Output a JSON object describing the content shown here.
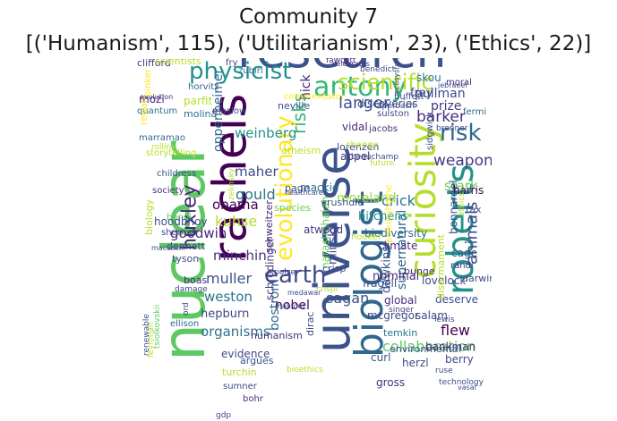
{
  "figure": {
    "title_line_1": "Community 7",
    "title_line_2": "[('Humanism', 115), ('Utilitarianism', 23), ('Ethics', 22)]"
  },
  "wordcloud": {
    "colormap": "viridis",
    "words": [
      {
        "text": "nuclear",
        "color": "#5ec962"
      },
      {
        "text": "research",
        "color": "#3b528b"
      },
      {
        "text": "universe",
        "color": "#3b528b"
      },
      {
        "text": "rachels",
        "color": "#440154"
      },
      {
        "text": "biologist",
        "color": "#31688e"
      },
      {
        "text": "curiosity",
        "color": "#b5de2b"
      },
      {
        "text": "roberts",
        "color": "#21918c"
      },
      {
        "text": "physicist",
        "color": "#21918c"
      },
      {
        "text": "antony",
        "color": "#35b779"
      },
      {
        "text": "scientific",
        "color": "#b5de2b"
      },
      {
        "text": "evolutionary",
        "color": "#fde725"
      },
      {
        "text": "huxley",
        "color": "#482878"
      },
      {
        "text": "earth",
        "color": "#3e4a89"
      },
      {
        "text": "risk",
        "color": "#31688e"
      },
      {
        "text": "animals",
        "color": "#3e4989"
      },
      {
        "text": "risks",
        "color": "#35b779"
      },
      {
        "text": "langer",
        "color": "#3b528b"
      },
      {
        "text": "weapons",
        "color": "#443983"
      },
      {
        "text": "barker",
        "color": "#472d7b"
      },
      {
        "text": "stark",
        "color": "#6ece58"
      },
      {
        "text": "crick",
        "color": "#2c728e"
      },
      {
        "text": "weinberg",
        "color": "#21918c"
      },
      {
        "text": "oppenheimer",
        "color": "#31688e"
      },
      {
        "text": "hick",
        "color": "#482878"
      },
      {
        "text": "maher",
        "color": "#3e4a89"
      },
      {
        "text": "gould",
        "color": "#2c728e"
      },
      {
        "text": "moreland",
        "color": "#a0da39"
      },
      {
        "text": "mackie",
        "color": "#2c728e"
      },
      {
        "text": "obama",
        "color": "#440154"
      },
      {
        "text": "kuhse",
        "color": "#b5de2b"
      },
      {
        "text": "goodwin",
        "color": "#482878"
      },
      {
        "text": "minchin",
        "color": "#472d7b"
      },
      {
        "text": "muller",
        "color": "#3b528b"
      },
      {
        "text": "weston",
        "color": "#2c728e"
      },
      {
        "text": "hepburn",
        "color": "#3e4a89"
      },
      {
        "text": "organisms",
        "color": "#2c728e"
      },
      {
        "text": "sagan",
        "color": "#3b528b"
      },
      {
        "text": "nobel",
        "color": "#440154"
      },
      {
        "text": "bostrom",
        "color": "#31688e"
      },
      {
        "text": "schrödinger",
        "color": "#443983"
      },
      {
        "text": "minsky",
        "color": "#3e4989"
      },
      {
        "text": "narasimhaiah",
        "color": "#6ece58"
      },
      {
        "text": "supernatural",
        "color": "#31688e"
      },
      {
        "text": "dawkins",
        "color": "#3b528b"
      },
      {
        "text": "collaboration",
        "color": "#5ec962"
      },
      {
        "text": "flew",
        "color": "#440154"
      },
      {
        "text": "pullman",
        "color": "#3e4a89"
      },
      {
        "text": "prize",
        "color": "#443983"
      },
      {
        "text": "mozi",
        "color": "#472d7b"
      },
      {
        "text": "discoveries",
        "color": "#3e4989"
      },
      {
        "text": "clifford",
        "color": "#443983"
      },
      {
        "text": "quantum",
        "color": "#2c728e"
      },
      {
        "text": "commentator",
        "color": "#fde725"
      },
      {
        "text": "skou",
        "color": "#2c728e"
      },
      {
        "text": "frey",
        "color": "#3e4989"
      },
      {
        "text": "moral",
        "color": "#472d7b"
      },
      {
        "text": "vidal",
        "color": "#482878"
      },
      {
        "text": "lorenzen",
        "color": "#3e4989"
      },
      {
        "text": "atheism",
        "color": "#b5de2b"
      },
      {
        "text": "page",
        "color": "#3b528b"
      },
      {
        "text": "zubiri",
        "color": "#2c728e"
      },
      {
        "text": "horvitz",
        "color": "#31688e"
      },
      {
        "text": "parfit",
        "color": "#b5de2b"
      },
      {
        "text": "molina",
        "color": "#2c728e"
      },
      {
        "text": "scientists",
        "color": "#b5de2b"
      },
      {
        "text": "maslow",
        "color": "#3e4a89"
      },
      {
        "text": "neville",
        "color": "#3b528b"
      },
      {
        "text": "fawcett",
        "color": "#482878"
      },
      {
        "text": "regan",
        "color": "#fde725"
      },
      {
        "text": "marramao",
        "color": "#31688e"
      },
      {
        "text": "storytelling",
        "color": "#b5de2b"
      },
      {
        "text": "childress",
        "color": "#3b528b"
      },
      {
        "text": "society",
        "color": "#472d7b"
      },
      {
        "text": "bondi",
        "color": "#5ec962"
      },
      {
        "text": "species",
        "color": "#6ece58"
      },
      {
        "text": "appel",
        "color": "#443983"
      },
      {
        "text": "hitchens",
        "color": "#21918c"
      },
      {
        "text": "biodiversity",
        "color": "#31688e"
      },
      {
        "text": "climate",
        "color": "#472d7b"
      },
      {
        "text": "bonnardel",
        "color": "#3e4989"
      },
      {
        "text": "harris",
        "color": "#440154"
      },
      {
        "text": "tax",
        "color": "#3e4a89"
      },
      {
        "text": "cage",
        "color": "#3b528b"
      },
      {
        "text": "randi",
        "color": "#472d7b"
      },
      {
        "text": "darwin",
        "color": "#3e4989"
      },
      {
        "text": "deserve",
        "color": "#3b528b"
      },
      {
        "text": "mcgregor",
        "color": "#3e4a89"
      },
      {
        "text": "temkin",
        "color": "#2c728e"
      },
      {
        "text": "rushdie",
        "color": "#3b528b"
      },
      {
        "text": "salam",
        "color": "#3e4989"
      },
      {
        "text": "global",
        "color": "#472d7b"
      },
      {
        "text": "nominal",
        "color": "#472d7b"
      },
      {
        "text": "hoodbhoy",
        "color": "#3b528b"
      },
      {
        "text": "biology",
        "color": "#b5de2b"
      },
      {
        "text": "shermer",
        "color": "#3e4a89"
      },
      {
        "text": "dennett",
        "color": "#3e4989"
      },
      {
        "text": "tyson",
        "color": "#3e4a89"
      },
      {
        "text": "boas",
        "color": "#472d7b"
      },
      {
        "text": "ord",
        "color": "#3e4a89"
      },
      {
        "text": "ellison",
        "color": "#31688e"
      },
      {
        "text": "atwood",
        "color": "#443983"
      },
      {
        "text": "crisp",
        "color": "#3e4a89"
      },
      {
        "text": "fragell",
        "color": "#3b528b"
      },
      {
        "text": "bunge",
        "color": "#472d7b"
      },
      {
        "text": "lovelock",
        "color": "#3e4989"
      },
      {
        "text": "dirac",
        "color": "#3e4a89"
      },
      {
        "text": "humanism",
        "color": "#472d7b"
      },
      {
        "text": "evidence",
        "color": "#3e4989"
      },
      {
        "text": "environmental",
        "color": "#3b528b"
      },
      {
        "text": "curl",
        "color": "#3b528b"
      },
      {
        "text": "herzl",
        "color": "#3e4989"
      },
      {
        "text": "bankman",
        "color": "#472d7b"
      },
      {
        "text": "berry",
        "color": "#3e4a89"
      },
      {
        "text": "gross",
        "color": "#472d7b"
      },
      {
        "text": "argues",
        "color": "#3b528b"
      },
      {
        "text": "turchin",
        "color": "#b5de2b"
      },
      {
        "text": "sumner",
        "color": "#3e4a89"
      },
      {
        "text": "bohr",
        "color": "#472d7b"
      },
      {
        "text": "renewable",
        "color": "#3b528b"
      },
      {
        "text": "tsiolkovskii",
        "color": "#5ec962"
      },
      {
        "text": "feynman",
        "color": "#b5de2b"
      },
      {
        "text": "gdp",
        "color": "#3e4a89"
      },
      {
        "text": "macaskill",
        "color": "#3e4a89"
      },
      {
        "text": "schweitzer",
        "color": "#472d7b"
      },
      {
        "text": "hooker",
        "color": "#b5de2b"
      },
      {
        "text": "polkinghorne",
        "color": "#fde725"
      },
      {
        "text": "sulston",
        "color": "#3e4989"
      },
      {
        "text": "zelinsky",
        "color": "#b5de2b"
      },
      {
        "text": "fry",
        "color": "#3e4a89"
      },
      {
        "text": "buffett",
        "color": "#3e4a89"
      },
      {
        "text": "benedict",
        "color": "#3e4a89"
      },
      {
        "text": "celebrates",
        "color": "#472d7b"
      },
      {
        "text": "fermi",
        "color": "#31688e"
      },
      {
        "text": "sidgwick",
        "color": "#3e4989"
      },
      {
        "text": "evolution",
        "color": "#472d7b"
      },
      {
        "text": "disarmament",
        "color": "#b5de2b"
      },
      {
        "text": "ethics",
        "color": "#b5de2b"
      },
      {
        "text": "beauchamp",
        "color": "#3e4989"
      },
      {
        "text": "jacobs",
        "color": "#472d7b"
      },
      {
        "text": "healthcare",
        "color": "#3e4989"
      },
      {
        "text": "future",
        "color": "#b5de2b"
      },
      {
        "text": "change",
        "color": "#b5de2b"
      },
      {
        "text": "pinker",
        "color": "#fde725"
      },
      {
        "text": "rollins",
        "color": "#b5de2b"
      },
      {
        "text": "damage",
        "color": "#3e4989"
      },
      {
        "text": "mahfouz",
        "color": "#3e4989"
      },
      {
        "text": "lewis",
        "color": "#3e4a89"
      },
      {
        "text": "polzer",
        "color": "#3e4989"
      },
      {
        "text": "ruse",
        "color": "#3e4989"
      },
      {
        "text": "technology",
        "color": "#3e4a89"
      },
      {
        "text": "vasal",
        "color": "#3e4989"
      },
      {
        "text": "bioethics",
        "color": "#b5de2b"
      },
      {
        "text": "singer",
        "color": "#3e4a89"
      },
      {
        "text": "medawar",
        "color": "#3e4a89"
      },
      {
        "text": "crispr",
        "color": "#b5de2b"
      },
      {
        "text": "ecosystems",
        "color": "#3e4989"
      },
      {
        "text": "approach",
        "color": "#3e4989"
      },
      {
        "text": "brenner",
        "color": "#3e4989"
      },
      {
        "text": "jebraeel",
        "color": "#3e4989"
      }
    ]
  }
}
